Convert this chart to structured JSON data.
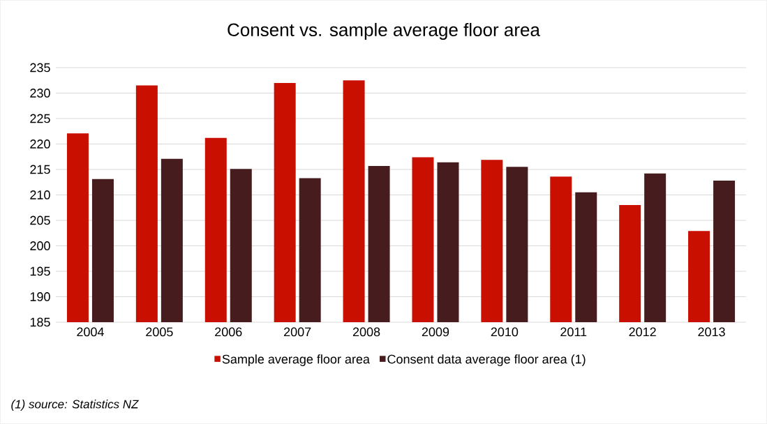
{
  "chart_data": {
    "type": "bar",
    "title": "Consent vs. sample average floor area",
    "categories": [
      "2004",
      "2005",
      "2006",
      "2007",
      "2008",
      "2009",
      "2010",
      "2011",
      "2012",
      "2013"
    ],
    "series": [
      {
        "name": "Sample average floor area",
        "color": "#c80f00",
        "values": [
          222.1,
          231.5,
          221.2,
          232.0,
          232.5,
          217.4,
          216.9,
          213.6,
          208.0,
          202.9
        ]
      },
      {
        "name": "Consent data average floor area (1)",
        "color": "#461c1e",
        "values": [
          213.1,
          217.1,
          215.1,
          213.3,
          215.7,
          216.4,
          215.5,
          210.5,
          214.2,
          212.8
        ]
      }
    ],
    "ylim": [
      185,
      235
    ],
    "yticks": [
      185,
      190,
      195,
      200,
      205,
      210,
      215,
      220,
      225,
      230,
      235
    ],
    "grid": "y",
    "legend": "bottom",
    "annotations": [
      "(1) source: Statistics NZ"
    ]
  }
}
